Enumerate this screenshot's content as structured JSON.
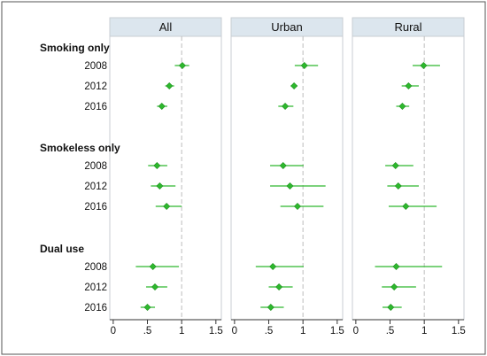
{
  "chart_data": {
    "type": "scatter",
    "colors": {
      "marker": "#2db82d",
      "marker_stroke": "#1f8f1f",
      "ci_line": "#2db82d",
      "reference_line": "#bdbdbd",
      "panel_header": "#dce6ee",
      "panel_border": "#c8ced3",
      "outer_border": "#555555"
    },
    "reference_value": 1,
    "xlim": [
      -0.05,
      1.58
    ],
    "x_ticks": [
      0,
      0.5,
      1,
      1.5
    ],
    "x_tick_labels": [
      "0",
      ".5",
      "1",
      "1.5"
    ],
    "panels": [
      {
        "title": "All"
      },
      {
        "title": "Urban"
      },
      {
        "title": "Rural"
      }
    ],
    "groups": [
      {
        "label": "Smoking only",
        "rows": [
          {
            "year": "2008",
            "points": [
              {
                "est": 1.01,
                "lo": 0.9,
                "hi": 1.11
              },
              {
                "est": 1.02,
                "lo": 0.88,
                "hi": 1.22
              },
              {
                "est": 0.99,
                "lo": 0.83,
                "hi": 1.23
              }
            ]
          },
          {
            "year": "2012",
            "points": [
              {
                "est": 0.82,
                "lo": 0.76,
                "hi": 0.89
              },
              {
                "est": 0.87,
                "lo": 0.82,
                "hi": 0.92
              },
              {
                "est": 0.77,
                "lo": 0.67,
                "hi": 0.92
              }
            ]
          },
          {
            "year": "2016",
            "points": [
              {
                "est": 0.71,
                "lo": 0.64,
                "hi": 0.79
              },
              {
                "est": 0.74,
                "lo": 0.64,
                "hi": 0.86
              },
              {
                "est": 0.68,
                "lo": 0.59,
                "hi": 0.78
              }
            ]
          }
        ]
      },
      {
        "label": "Smokeless only",
        "rows": [
          {
            "year": "2008",
            "points": [
              {
                "est": 0.64,
                "lo": 0.51,
                "hi": 0.79
              },
              {
                "est": 0.71,
                "lo": 0.52,
                "hi": 1.01
              },
              {
                "est": 0.58,
                "lo": 0.43,
                "hi": 0.84
              }
            ]
          },
          {
            "year": "2012",
            "points": [
              {
                "est": 0.68,
                "lo": 0.55,
                "hi": 0.91
              },
              {
                "est": 0.81,
                "lo": 0.52,
                "hi": 1.33
              },
              {
                "est": 0.62,
                "lo": 0.46,
                "hi": 0.92
              }
            ]
          },
          {
            "year": "2016",
            "points": [
              {
                "est": 0.78,
                "lo": 0.62,
                "hi": 1.0
              },
              {
                "est": 0.92,
                "lo": 0.67,
                "hi": 1.3
              },
              {
                "est": 0.73,
                "lo": 0.48,
                "hi": 1.18
              }
            ]
          }
        ]
      },
      {
        "label": "Dual use",
        "rows": [
          {
            "year": "2008",
            "points": [
              {
                "est": 0.58,
                "lo": 0.33,
                "hi": 0.96
              },
              {
                "est": 0.56,
                "lo": 0.31,
                "hi": 1.01
              },
              {
                "est": 0.59,
                "lo": 0.28,
                "hi": 1.26
              }
            ]
          },
          {
            "year": "2012",
            "points": [
              {
                "est": 0.61,
                "lo": 0.48,
                "hi": 0.79
              },
              {
                "est": 0.65,
                "lo": 0.5,
                "hi": 0.85
              },
              {
                "est": 0.56,
                "lo": 0.38,
                "hi": 0.88
              }
            ]
          },
          {
            "year": "2016",
            "points": [
              {
                "est": 0.5,
                "lo": 0.4,
                "hi": 0.61
              },
              {
                "est": 0.53,
                "lo": 0.38,
                "hi": 0.72
              },
              {
                "est": 0.51,
                "lo": 0.39,
                "hi": 0.67
              }
            ]
          }
        ]
      }
    ]
  }
}
